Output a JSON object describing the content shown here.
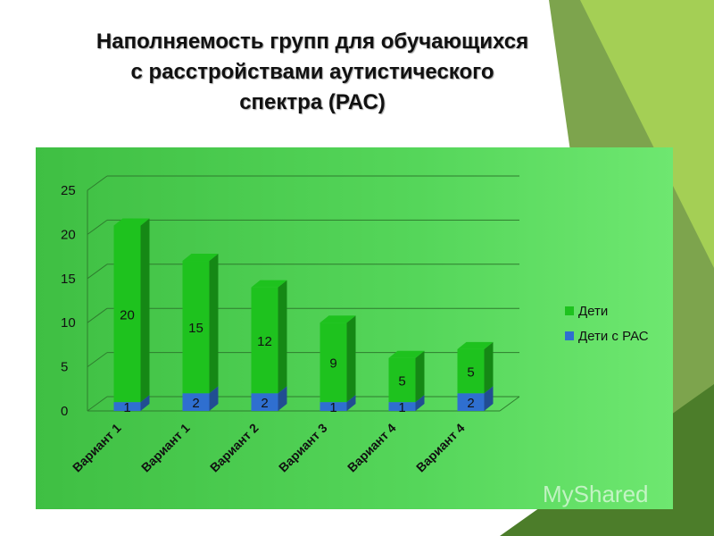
{
  "title_lines": [
    "Наполняемость групп для обучающихся",
    "с расстройствами аутистического",
    "спектра (РАС)"
  ],
  "watermark": "MyShared",
  "colors": {
    "panel": "#4fcf53",
    "deti": "#1ec21e",
    "deti_ras": "#2f6fd0",
    "deco_dark": "#5a8a2a",
    "deco_light": "#9cc84a"
  },
  "chart_data": {
    "type": "bar",
    "stacked": true,
    "categories": [
      "Вариант 1",
      "Вариант 1",
      "Вариант 2",
      "Вариант 3",
      "Вариант 4",
      "Вариант 4"
    ],
    "series": [
      {
        "name": "Дети с РАС",
        "values": [
          1,
          2,
          2,
          1,
          1,
          2
        ],
        "color": "#2f6fd0"
      },
      {
        "name": "Дети",
        "values": [
          20,
          15,
          12,
          9,
          5,
          5
        ],
        "color": "#1ec21e"
      }
    ],
    "yticks": [
      0,
      5,
      10,
      15,
      20,
      25
    ],
    "ylim": [
      0,
      25
    ],
    "legend_position": "right",
    "grid": true
  }
}
